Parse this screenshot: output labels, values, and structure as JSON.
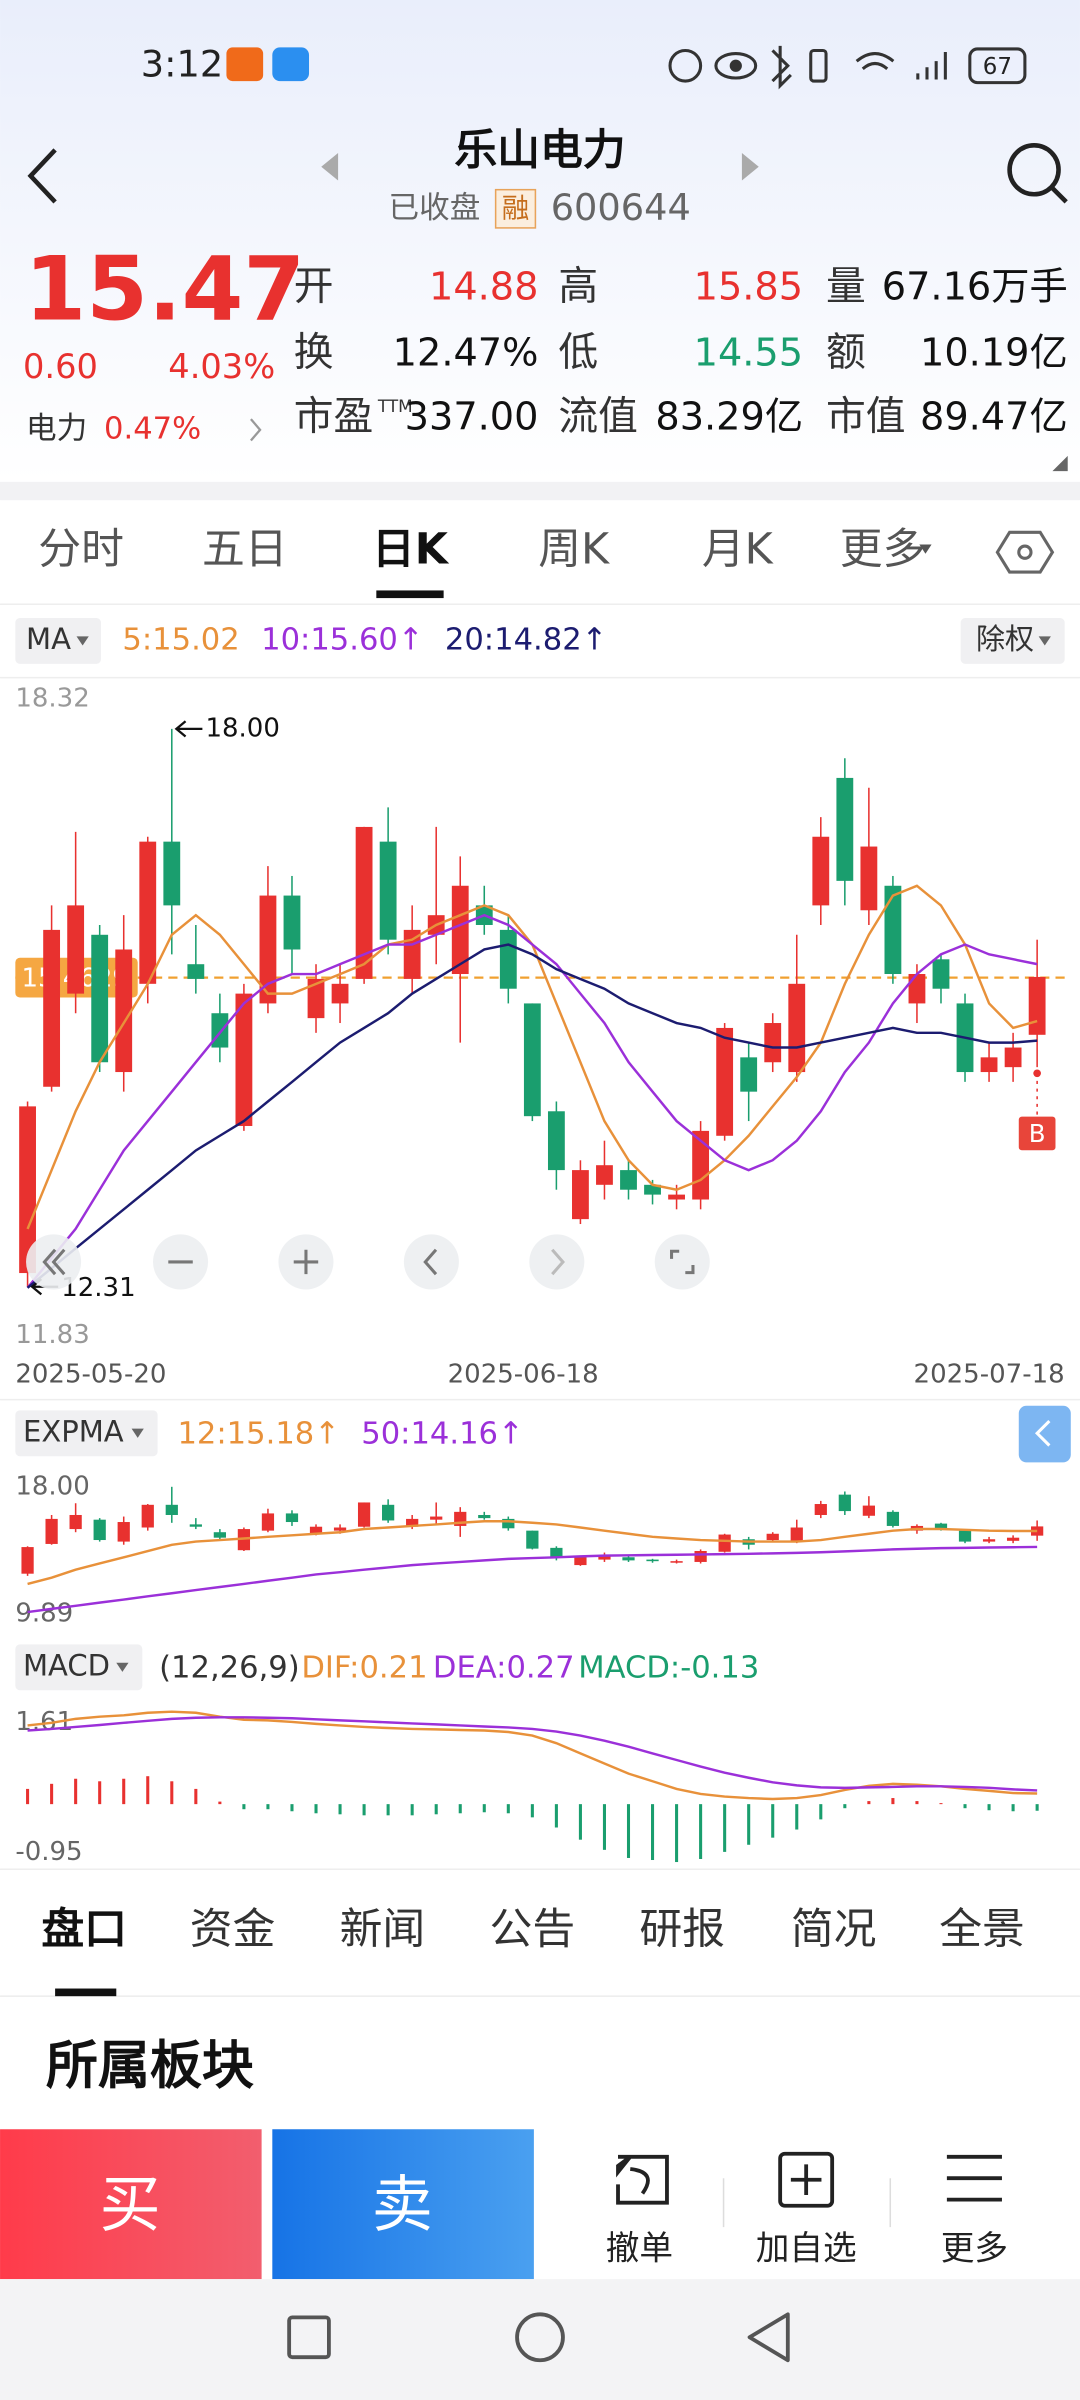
{
  "status_bar": {
    "time": "3:12",
    "battery": "67"
  },
  "header": {
    "title": "乐山电力",
    "status": "已收盘",
    "margin_tag": "融",
    "code": "600644"
  },
  "quote": {
    "price": "15.47",
    "change": "0.60",
    "change_pct": "4.03%",
    "sector": "电力",
    "sector_pct": "0.47%",
    "fields": [
      {
        "label": "开",
        "value": "14.88",
        "color": "#e8312f"
      },
      {
        "label": "高",
        "value": "15.85",
        "color": "#e8312f"
      },
      {
        "label": "量",
        "value": "67.16万手",
        "color": "#111111"
      },
      {
        "label": "换",
        "value": "12.47%",
        "color": "#111111"
      },
      {
        "label": "低",
        "value": "14.55",
        "color": "#1a9e6e"
      },
      {
        "label": "额",
        "value": "10.19亿",
        "color": "#111111"
      },
      {
        "label": "市盈",
        "sup": "TTM",
        "value": "337.00",
        "color": "#111111"
      },
      {
        "label": "流值",
        "value": "83.29亿",
        "color": "#111111"
      },
      {
        "label": "市值",
        "value": "89.47亿",
        "color": "#111111"
      }
    ]
  },
  "period_tabs": [
    "分时",
    "五日",
    "日K",
    "周K",
    "月K",
    "更多"
  ],
  "ma_legend": {
    "selector": "MA",
    "items": [
      {
        "text": "5:15.02",
        "color": "#e8913a"
      },
      {
        "text": "10:15.60↑",
        "color": "#9b30d9"
      },
      {
        "text": "20:14.82↑",
        "color": "#1c1c70"
      }
    ],
    "adjust": "除权"
  },
  "kline": {
    "ylim": [
      11.83,
      18.32
    ],
    "ref_line": 15.4629,
    "high_label": "18.00",
    "low_label": "12.31",
    "signal": "B",
    "xticks": [
      "2025-05-20",
      "2025-06-18",
      "2025-07-18"
    ],
    "up_color": "#e8312f",
    "down_color": "#1a9e6e",
    "open": [
      12.45,
      14.35,
      15.3,
      15.9,
      14.5,
      15.4,
      16.85,
      15.6,
      15.1,
      13.95,
      15.2,
      16.3,
      15.05,
      15.2,
      15.45,
      16.85,
      15.45,
      15.9,
      15.5,
      16.2,
      15.95,
      15.2,
      14.1,
      13.0,
      13.35,
      13.5,
      13.35,
      13.2,
      13.2,
      13.85,
      14.65,
      14.6,
      14.5,
      16.2,
      17.5,
      16.15,
      16.4,
      15.2,
      15.65,
      15.2,
      14.5,
      14.55,
      14.88
    ],
    "high": [
      14.2,
      16.2,
      16.95,
      16.0,
      16.1,
      16.9,
      18.0,
      16.0,
      15.3,
      15.4,
      16.6,
      16.5,
      15.6,
      15.6,
      17.0,
      17.2,
      16.2,
      17.0,
      16.7,
      16.4,
      16.1,
      15.2,
      14.2,
      13.6,
      13.8,
      13.6,
      13.4,
      13.35,
      14.0,
      15.0,
      14.8,
      15.1,
      15.9,
      17.1,
      17.7,
      17.4,
      16.5,
      15.6,
      15.7,
      15.3,
      14.8,
      14.9,
      15.85
    ],
    "low": [
      12.31,
      14.3,
      15.1,
      14.5,
      14.3,
      15.2,
      15.7,
      15.3,
      14.6,
      13.9,
      15.1,
      15.5,
      14.9,
      15.0,
      15.4,
      15.7,
      15.3,
      15.6,
      14.8,
      15.9,
      15.2,
      14.0,
      13.3,
      12.95,
      13.2,
      13.2,
      13.15,
      13.1,
      13.1,
      13.8,
      14.0,
      14.5,
      14.4,
      16.0,
      16.2,
      16.0,
      15.4,
      15.0,
      15.2,
      14.4,
      14.4,
      14.4,
      14.55
    ],
    "close": [
      14.15,
      15.95,
      16.2,
      14.6,
      15.75,
      16.85,
      16.2,
      15.45,
      14.75,
      15.3,
      16.3,
      15.75,
      15.45,
      15.4,
      17.0,
      15.85,
      15.95,
      16.1,
      16.4,
      16.0,
      15.35,
      14.05,
      13.5,
      13.5,
      13.55,
      13.3,
      13.25,
      13.25,
      13.9,
      14.95,
      14.3,
      15.0,
      15.4,
      16.9,
      16.45,
      16.8,
      15.5,
      15.5,
      15.35,
      14.5,
      14.65,
      14.75,
      15.47
    ],
    "ma5": [
      12.9,
      13.5,
      14.1,
      14.6,
      15.0,
      15.4,
      15.9,
      16.1,
      15.9,
      15.6,
      15.3,
      15.3,
      15.4,
      15.5,
      15.6,
      15.8,
      15.85,
      16.0,
      16.1,
      16.2,
      16.1,
      15.8,
      15.2,
      14.6,
      14.0,
      13.6,
      13.35,
      13.3,
      13.4,
      13.6,
      13.85,
      14.15,
      14.45,
      14.8,
      15.4,
      15.9,
      16.3,
      16.4,
      16.2,
      15.8,
      15.2,
      14.95,
      15.02
    ],
    "ma10": [
      12.3,
      12.6,
      12.9,
      13.3,
      13.7,
      14.0,
      14.3,
      14.6,
      14.9,
      15.2,
      15.4,
      15.5,
      15.5,
      15.6,
      15.7,
      15.8,
      15.8,
      15.9,
      16.0,
      16.1,
      16.0,
      15.8,
      15.6,
      15.3,
      15.0,
      14.6,
      14.3,
      14.0,
      13.8,
      13.6,
      13.5,
      13.6,
      13.8,
      14.1,
      14.5,
      14.8,
      15.2,
      15.5,
      15.7,
      15.8,
      15.7,
      15.65,
      15.6
    ],
    "ma20": [
      12.3,
      12.5,
      12.7,
      12.9,
      13.1,
      13.3,
      13.5,
      13.7,
      13.85,
      14.0,
      14.2,
      14.4,
      14.6,
      14.8,
      14.95,
      15.1,
      15.3,
      15.45,
      15.6,
      15.75,
      15.8,
      15.7,
      15.55,
      15.45,
      15.35,
      15.2,
      15.1,
      15.0,
      14.95,
      14.85,
      14.8,
      14.75,
      14.75,
      14.8,
      14.85,
      14.9,
      14.95,
      14.9,
      14.9,
      14.85,
      14.8,
      14.8,
      14.82
    ]
  },
  "expma": {
    "selector": "EXPMA",
    "items": [
      {
        "text": "12:15.18↑",
        "color": "#e8913a"
      },
      {
        "text": "50:14.16↑",
        "color": "#9b30d9"
      }
    ],
    "ylim": [
      9.89,
      18
    ],
    "yticks": [
      9.89,
      {
        "value": 18,
        "label": "18.00"
      }
    ],
    "expma12": [
      11.8,
      12.2,
      12.7,
      13.1,
      13.5,
      13.9,
      14.3,
      14.5,
      14.6,
      14.7,
      14.8,
      14.9,
      15.0,
      15.1,
      15.3,
      15.4,
      15.5,
      15.6,
      15.7,
      15.8,
      15.8,
      15.7,
      15.6,
      15.4,
      15.2,
      15.0,
      14.8,
      14.7,
      14.6,
      14.55,
      14.5,
      14.5,
      14.5,
      14.6,
      14.8,
      15.0,
      15.2,
      15.3,
      15.3,
      15.25,
      15.2,
      15.18,
      15.18
    ],
    "expma50": [
      10.0,
      10.2,
      10.4,
      10.6,
      10.8,
      11.0,
      11.2,
      11.4,
      11.6,
      11.8,
      12.0,
      12.2,
      12.4,
      12.55,
      12.7,
      12.85,
      13.0,
      13.1,
      13.2,
      13.3,
      13.4,
      13.45,
      13.5,
      13.55,
      13.6,
      13.62,
      13.64,
      13.66,
      13.68,
      13.7,
      13.72,
      13.75,
      13.78,
      13.82,
      13.88,
      13.94,
      14.0,
      14.04,
      14.08,
      14.1,
      14.12,
      14.14,
      14.16
    ]
  },
  "macd": {
    "selector": "MACD",
    "params": "(12,26,9)",
    "dif_label": "DIF:0.21",
    "dea_label": "DEA:0.27",
    "macd_label": "MACD:-0.13",
    "ylim": [
      -0.95,
      1.61
    ],
    "yticks": [
      -0.95,
      1.61
    ],
    "dif": [
      1.55,
      1.6,
      1.68,
      1.72,
      1.75,
      1.8,
      1.82,
      1.8,
      1.72,
      1.66,
      1.65,
      1.62,
      1.58,
      1.55,
      1.52,
      1.5,
      1.48,
      1.47,
      1.46,
      1.45,
      1.42,
      1.35,
      1.2,
      1.0,
      0.8,
      0.6,
      0.45,
      0.3,
      0.2,
      0.15,
      0.12,
      0.1,
      0.12,
      0.18,
      0.28,
      0.36,
      0.4,
      0.38,
      0.35,
      0.3,
      0.26,
      0.22,
      0.21
    ],
    "dea": [
      1.45,
      1.48,
      1.52,
      1.56,
      1.6,
      1.64,
      1.68,
      1.7,
      1.71,
      1.71,
      1.7,
      1.69,
      1.67,
      1.65,
      1.63,
      1.61,
      1.59,
      1.57,
      1.55,
      1.53,
      1.51,
      1.48,
      1.43,
      1.35,
      1.25,
      1.13,
      1.0,
      0.87,
      0.74,
      0.62,
      0.52,
      0.43,
      0.37,
      0.33,
      0.32,
      0.33,
      0.34,
      0.35,
      0.35,
      0.34,
      0.32,
      0.29,
      0.27
    ],
    "hist": [
      0.3,
      0.4,
      0.5,
      0.45,
      0.5,
      0.55,
      0.45,
      0.3,
      0.05,
      -0.1,
      -0.1,
      -0.14,
      -0.18,
      -0.2,
      -0.22,
      -0.22,
      -0.22,
      -0.2,
      -0.18,
      -0.16,
      -0.18,
      -0.26,
      -0.46,
      -0.7,
      -0.9,
      -1.06,
      -1.1,
      -1.14,
      -1.08,
      -0.94,
      -0.8,
      -0.66,
      -0.5,
      -0.3,
      -0.08,
      0.06,
      0.12,
      0.06,
      0.02,
      -0.08,
      -0.12,
      -0.14,
      -0.13
    ]
  },
  "bottom_tabs": [
    "盘口",
    "资金",
    "新闻",
    "公告",
    "研报",
    "简况",
    "全景"
  ],
  "section_title": "所属板块",
  "actions": {
    "buy": "买",
    "sell": "卖",
    "cancel": "撤单",
    "watch": "加自选",
    "more": "更多"
  }
}
